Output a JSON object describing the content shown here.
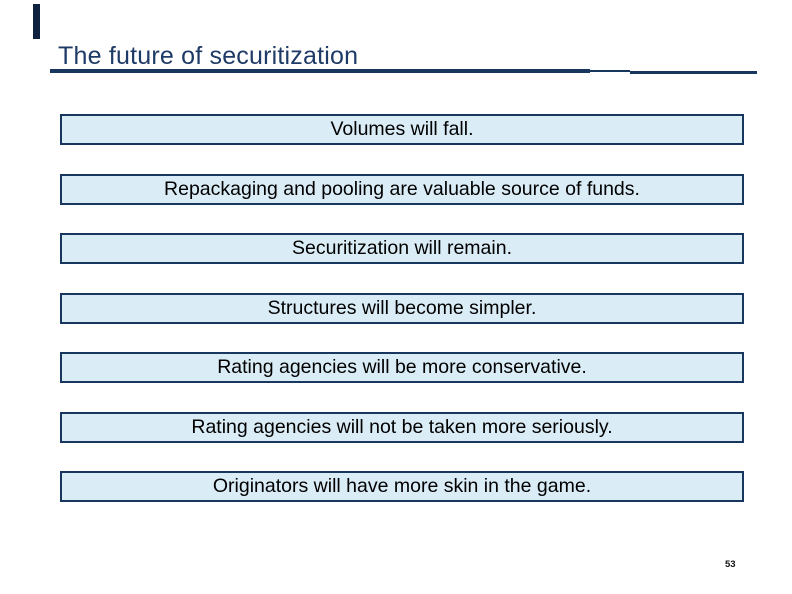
{
  "slide": {
    "title": "The future of securitization",
    "page_number": "53",
    "statements": [
      {
        "text": "Volumes will fall."
      },
      {
        "text": "Repackaging and pooling are valuable source of funds."
      },
      {
        "text": "Securitization will remain."
      },
      {
        "text": "Structures will become simpler."
      },
      {
        "text": "Rating agencies will be more conservative."
      },
      {
        "text": "Rating agencies will not be taken more seriously."
      },
      {
        "text": "Originators will have more skin in the game."
      }
    ],
    "colors": {
      "accent_navy": "#17375e",
      "title_text": "#1e3a66",
      "box_fill": "#daecf6",
      "box_border": "#17375e",
      "statement_text": "#000000",
      "accent_bar": "#0e2240"
    }
  }
}
